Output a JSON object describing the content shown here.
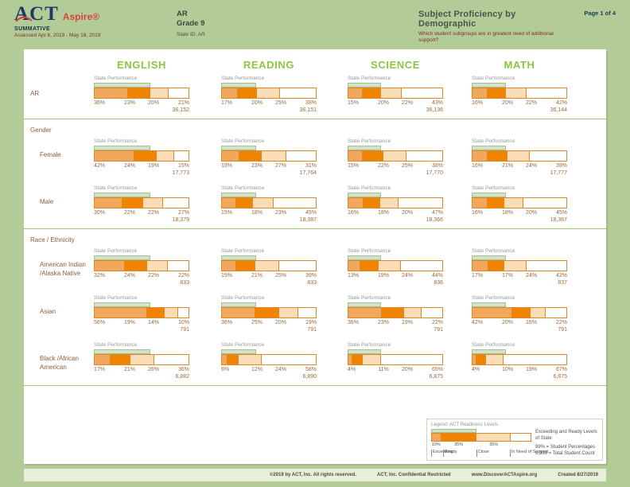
{
  "header": {
    "logo_act": "ACT",
    "logo_aspire": "Aspire®",
    "summative": "SUMMATIVE",
    "assessed": "Assessed Apr 8, 2019 - May 18, 2019",
    "state": "AR",
    "grade": "Grade 9",
    "state_id": "State ID: AR",
    "title": "Subject Proficiency by Demographic",
    "subtitle": "Which student subgroups are in greatest need of additional support?",
    "page": "Page 1 of 4"
  },
  "chart_data": {
    "type": "bar",
    "subtype": "horizontal-stacked-small-multiples",
    "state_performance_label": "State Performance",
    "subjects": [
      "ENGLISH",
      "READING",
      "SCIENCE",
      "MATH"
    ],
    "levels": [
      "Exceeding",
      "Ready",
      "Close",
      "In Need of Support"
    ],
    "level_colors": [
      "#F1A75C",
      "#F08300",
      "#FADCB6",
      "#FFFFFF"
    ],
    "state_exceed_ready_pct": [
      59,
      37,
      35,
      36
    ],
    "xlim": [
      0,
      100
    ],
    "sections": [
      {
        "heading": "",
        "rows": [
          {
            "label": "AR",
            "charts": [
              {
                "values": [
                  36,
                  23,
                  20,
                  21
                ],
                "pcts": [
                  "36%",
                  "23%",
                  "20%",
                  "21%"
                ],
                "count": "36,152"
              },
              {
                "values": [
                  17,
                  20,
                  25,
                  38
                ],
                "pcts": [
                  "17%",
                  "20%",
                  "25%",
                  "38%"
                ],
                "count": "36,151"
              },
              {
                "values": [
                  15,
                  20,
                  22,
                  43
                ],
                "pcts": [
                  "15%",
                  "20%",
                  "22%",
                  "43%"
                ],
                "count": "36,136"
              },
              {
                "values": [
                  16,
                  20,
                  22,
                  42
                ],
                "pcts": [
                  "16%",
                  "20%",
                  "22%",
                  "42%"
                ],
                "count": "36,144"
              }
            ]
          }
        ]
      },
      {
        "heading": "Gender",
        "rows": [
          {
            "label": "Female",
            "charts": [
              {
                "values": [
                  42,
                  24,
                  19,
                  15
                ],
                "pcts": [
                  "42%",
                  "24%",
                  "19%",
                  "15%"
                ],
                "count": "17,773"
              },
              {
                "values": [
                  19,
                  23,
                  27,
                  31
                ],
                "pcts": [
                  "19%",
                  "23%",
                  "27%",
                  "31%"
                ],
                "count": "17,764"
              },
              {
                "values": [
                  15,
                  22,
                  25,
                  38
                ],
                "pcts": [
                  "15%",
                  "22%",
                  "25%",
                  "38%"
                ],
                "count": "17,770"
              },
              {
                "values": [
                  16,
                  21,
                  24,
                  39
                ],
                "pcts": [
                  "16%",
                  "21%",
                  "24%",
                  "39%"
                ],
                "count": "17,777"
              }
            ]
          },
          {
            "label": "Male",
            "charts": [
              {
                "values": [
                  30,
                  22,
                  22,
                  27
                ],
                "pcts": [
                  "30%",
                  "22%",
                  "22%",
                  "27%"
                ],
                "count": "18,379"
              },
              {
                "values": [
                  15,
                  18,
                  23,
                  45
                ],
                "pcts": [
                  "15%",
                  "18%",
                  "23%",
                  "45%"
                ],
                "count": "18,387"
              },
              {
                "values": [
                  16,
                  18,
                  20,
                  47
                ],
                "pcts": [
                  "16%",
                  "18%",
                  "20%",
                  "47%"
                ],
                "count": "18,366"
              },
              {
                "values": [
                  16,
                  18,
                  20,
                  45
                ],
                "pcts": [
                  "16%",
                  "18%",
                  "20%",
                  "45%"
                ],
                "count": "18,367"
              }
            ]
          }
        ]
      },
      {
        "heading": "Race / Ethnicity",
        "rows": [
          {
            "label": "American Indian /Alaska Native",
            "charts": [
              {
                "values": [
                  32,
                  24,
                  22,
                  22
                ],
                "pcts": [
                  "32%",
                  "24%",
                  "22%",
                  "22%"
                ],
                "count": "833"
              },
              {
                "values": [
                  15,
                  21,
                  25,
                  39
                ],
                "pcts": [
                  "15%",
                  "21%",
                  "25%",
                  "39%"
                ],
                "count": "833"
              },
              {
                "values": [
                  13,
                  19,
                  24,
                  44
                ],
                "pcts": [
                  "13%",
                  "19%",
                  "24%",
                  "44%"
                ],
                "count": "836"
              },
              {
                "values": [
                  17,
                  17,
                  24,
                  42
                ],
                "pcts": [
                  "17%",
                  "17%",
                  "24%",
                  "42%"
                ],
                "count": "837"
              }
            ]
          },
          {
            "label": "Asian",
            "charts": [
              {
                "values": [
                  56,
                  19,
                  14,
                  10
                ],
                "pcts": [
                  "56%",
                  "19%",
                  "14%",
                  "10%"
                ],
                "count": "791"
              },
              {
                "values": [
                  36,
                  25,
                  20,
                  19
                ],
                "pcts": [
                  "36%",
                  "25%",
                  "20%",
                  "19%"
                ],
                "count": "791"
              },
              {
                "values": [
                  36,
                  23,
                  19,
                  22
                ],
                "pcts": [
                  "36%",
                  "23%",
                  "19%",
                  "22%"
                ],
                "count": "791"
              },
              {
                "values": [
                  42,
                  20,
                  16,
                  22
                ],
                "pcts": [
                  "42%",
                  "20%",
                  "16%",
                  "22%"
                ],
                "count": "791"
              }
            ]
          },
          {
            "label": "Black /African American",
            "charts": [
              {
                "values": [
                  17,
                  21,
                  26,
                  36
                ],
                "pcts": [
                  "17%",
                  "21%",
                  "26%",
                  "36%"
                ],
                "count": "6,882"
              },
              {
                "values": [
                  6,
                  12,
                  24,
                  58
                ],
                "pcts": [
                  "6%",
                  "12%",
                  "24%",
                  "58%"
                ],
                "count": "6,890"
              },
              {
                "values": [
                  4,
                  11,
                  20,
                  65
                ],
                "pcts": [
                  "4%",
                  "11%",
                  "20%",
                  "65%"
                ],
                "count": "6,875"
              },
              {
                "values": [
                  4,
                  10,
                  19,
                  67
                ],
                "pcts": [
                  "4%",
                  "10%",
                  "19%",
                  "67%"
                ],
                "count": "6,875"
              }
            ]
          }
        ]
      }
    ]
  },
  "legend": {
    "title": "Legend: ACT Readiness Levels",
    "band_label": "Exceeding and Ready Levels of State",
    "sample_values": [
      10,
      35,
      35,
      20
    ],
    "sample_pcts": [
      "10%",
      "35%",
      "35%"
    ],
    "levels": [
      "Exceeding",
      "Ready",
      "Close",
      "In Need of Support"
    ],
    "callout_percent": "99% = Student Percentages",
    "callout_count": "9,999 = Total Student Count"
  },
  "footer": {
    "copyright": "©2019 by ACT, Inc. All rights reserved.",
    "confidential": "ACT, Inc. Confidential Restricted",
    "url": "www.DiscoverACTAspire.org",
    "created": "Created 8/27/2019"
  },
  "colors": {
    "page_background": "#B3CB97",
    "subject_heading": "#8DC63F",
    "bar_border": "#DD8827",
    "state_band_fill": "#D6E2C8",
    "state_band_border": "#A2C192",
    "label_brown": "#8A5F3A",
    "percent_brown": "#9C6A3A",
    "divider_green": "#A5C76E"
  }
}
